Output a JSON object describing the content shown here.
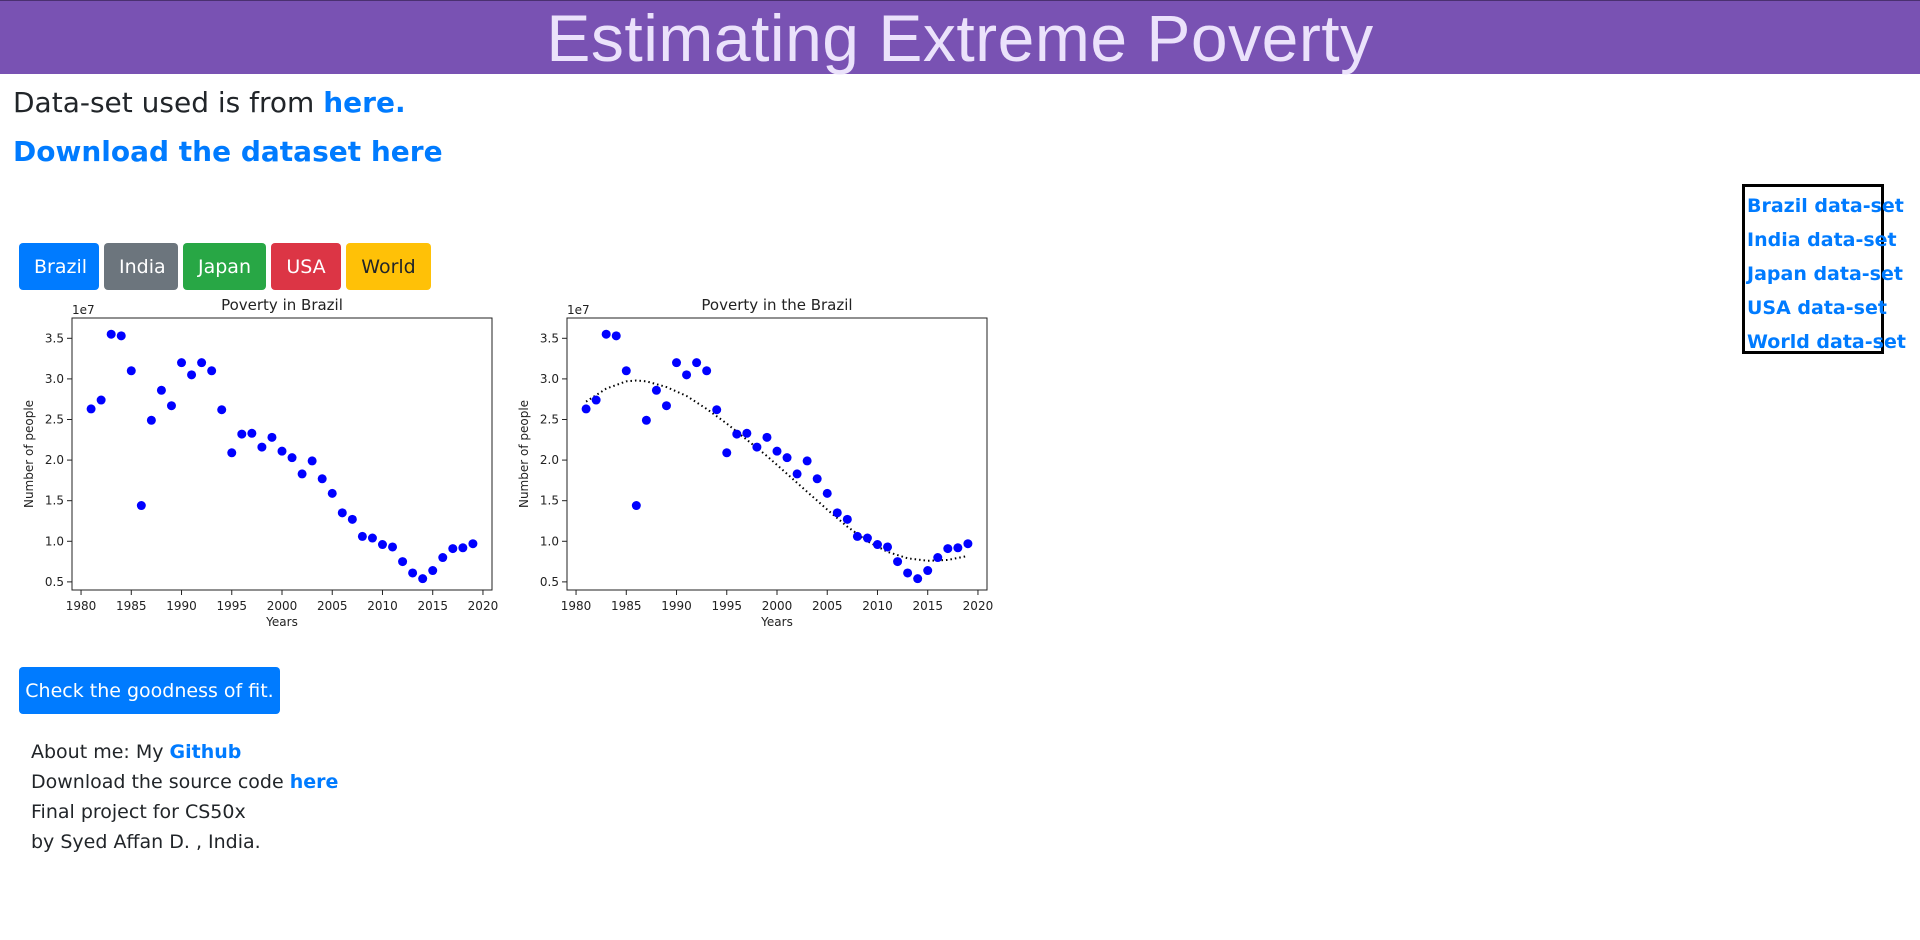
{
  "header": {
    "title": "Estimating Extreme Poverty"
  },
  "source": {
    "prefix": "Data-set used is from ",
    "link": "here."
  },
  "download": {
    "link": "Download the dataset here"
  },
  "tabs": [
    {
      "label": "Brazil",
      "color": "#007bff"
    },
    {
      "label": "India",
      "color": "#6c757d"
    },
    {
      "label": "Japan",
      "color": "#28a745"
    },
    {
      "label": "USA",
      "color": "#dc3545"
    },
    {
      "label": "World",
      "color": "#ffc107"
    }
  ],
  "chart_data": [
    {
      "type": "scatter",
      "title": "Poverty in Brazil",
      "xlabel": "Years",
      "ylabel": "Number of people",
      "y_scale_label": "1e7",
      "xlim": [
        1979.1,
        2020.9
      ],
      "ylim": [
        0.4,
        3.75
      ],
      "xticks": [
        1980,
        1985,
        1990,
        1995,
        2000,
        2005,
        2010,
        2015,
        2020
      ],
      "yticks": [
        0.5,
        1.0,
        1.5,
        2.0,
        2.5,
        3.0,
        3.5
      ],
      "point_color": "#0000ff",
      "x": [
        1981,
        1982,
        1983,
        1984,
        1985,
        1986,
        1987,
        1988,
        1989,
        1990,
        1991,
        1992,
        1993,
        1994,
        1995,
        1996,
        1997,
        1998,
        1999,
        2000,
        2001,
        2002,
        2003,
        2004,
        2005,
        2006,
        2007,
        2008,
        2009,
        2010,
        2011,
        2012,
        2013,
        2014,
        2015,
        2016,
        2017,
        2018,
        2019
      ],
      "y": [
        2.63,
        2.74,
        3.55,
        3.53,
        3.1,
        1.44,
        2.49,
        2.86,
        2.67,
        3.2,
        3.05,
        3.2,
        3.1,
        2.62,
        2.09,
        2.32,
        2.33,
        2.16,
        2.28,
        2.11,
        2.03,
        1.83,
        1.99,
        1.77,
        1.59,
        1.35,
        1.27,
        1.06,
        1.04,
        0.96,
        0.93,
        0.75,
        0.61,
        0.54,
        0.64,
        0.8,
        0.91,
        0.92,
        0.97
      ]
    },
    {
      "type": "scatter",
      "title": "Poverty in the Brazil",
      "xlabel": "Years",
      "ylabel": "Number of people",
      "y_scale_label": "1e7",
      "xlim": [
        1979.1,
        2020.9
      ],
      "ylim": [
        0.4,
        3.75
      ],
      "xticks": [
        1980,
        1985,
        1990,
        1995,
        2000,
        2005,
        2010,
        2015,
        2020
      ],
      "yticks": [
        0.5,
        1.0,
        1.5,
        2.0,
        2.5,
        3.0,
        3.5
      ],
      "point_color": "#0000ff",
      "fit_color": "#000000",
      "x": [
        1981,
        1982,
        1983,
        1984,
        1985,
        1986,
        1987,
        1988,
        1989,
        1990,
        1991,
        1992,
        1993,
        1994,
        1995,
        1996,
        1997,
        1998,
        1999,
        2000,
        2001,
        2002,
        2003,
        2004,
        2005,
        2006,
        2007,
        2008,
        2009,
        2010,
        2011,
        2012,
        2013,
        2014,
        2015,
        2016,
        2017,
        2018,
        2019
      ],
      "y": [
        2.63,
        2.74,
        3.55,
        3.53,
        3.1,
        1.44,
        2.49,
        2.86,
        2.67,
        3.2,
        3.05,
        3.2,
        3.1,
        2.62,
        2.09,
        2.32,
        2.33,
        2.16,
        2.28,
        2.11,
        2.03,
        1.83,
        1.99,
        1.77,
        1.59,
        1.35,
        1.27,
        1.06,
        1.04,
        0.96,
        0.93,
        0.75,
        0.61,
        0.54,
        0.64,
        0.8,
        0.91,
        0.92,
        0.97
      ],
      "fit_x": [
        1981,
        1983,
        1985,
        1986,
        1987,
        1989,
        1991,
        1993,
        1995,
        1997,
        1999,
        2001,
        2003,
        2005,
        2007,
        2009,
        2011,
        2013,
        2015,
        2017,
        2019
      ],
      "fit_y": [
        2.72,
        2.88,
        2.97,
        2.98,
        2.97,
        2.9,
        2.79,
        2.63,
        2.45,
        2.25,
        2.05,
        1.83,
        1.61,
        1.39,
        1.18,
        1.0,
        0.87,
        0.79,
        0.76,
        0.77,
        0.82
      ]
    }
  ],
  "fit_button": {
    "label": "Check the goodness of fit."
  },
  "footer": {
    "about_prefix": "About me: My ",
    "github_link": "Github",
    "source_prefix": "Download the source code ",
    "source_link": "here",
    "project_line": "Final project for CS50x",
    "author_line": "by Syed Affan D. , India."
  },
  "sidebar": {
    "links": [
      "Brazil data-set",
      "India data-set",
      "Japan data-set",
      "USA data-set",
      "World data-set"
    ]
  }
}
